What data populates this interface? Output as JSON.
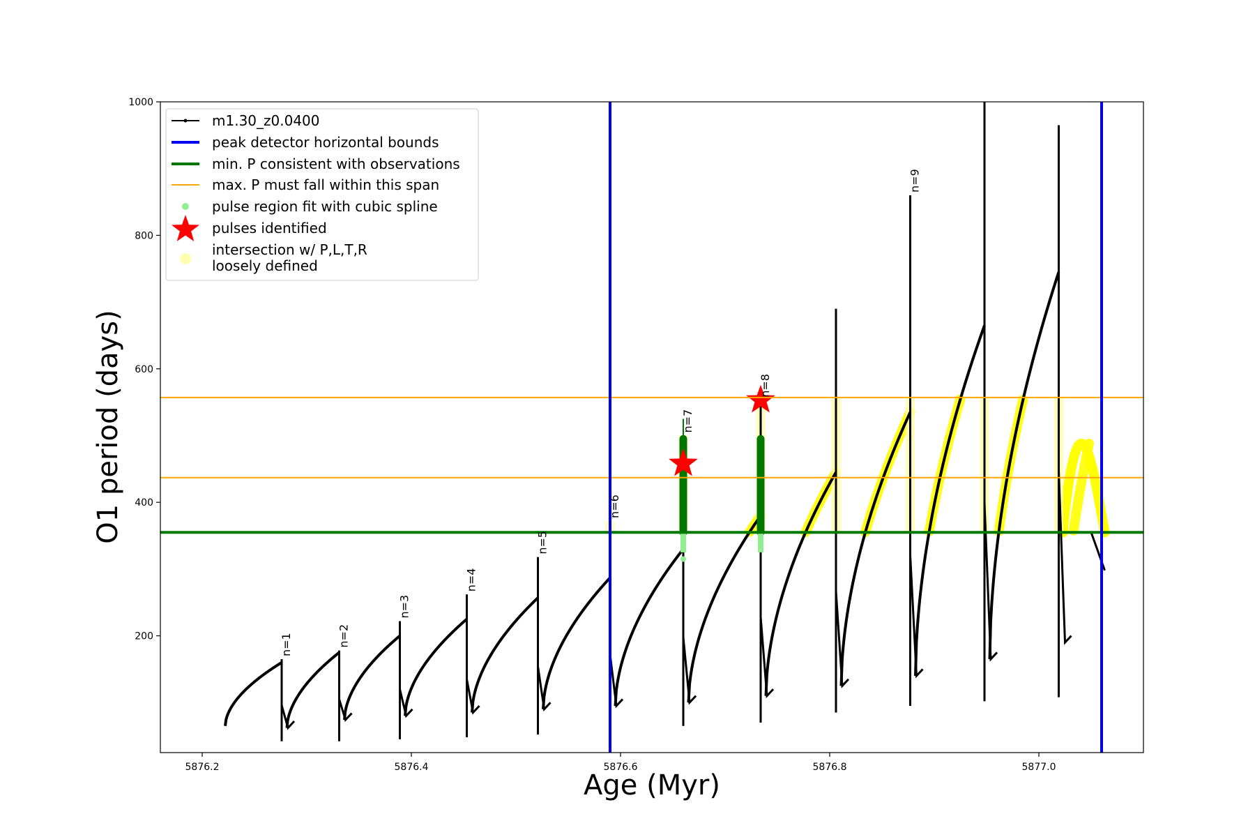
{
  "chart_data": {
    "type": "line",
    "xlabel": "Age (Myr)",
    "ylabel": "O1 period (days)",
    "xlim": [
      5876.16,
      5877.1
    ],
    "ylim": [
      25,
      1000
    ],
    "x_ticks": [
      {
        "value": 5876.2,
        "label": "5876.2"
      },
      {
        "value": 5876.4,
        "label": "5876.4"
      },
      {
        "value": 5876.6,
        "label": "5876.6"
      },
      {
        "value": 5876.8,
        "label": "5876.8"
      },
      {
        "value": 5877.0,
        "label": "5877.0"
      }
    ],
    "y_ticks": [
      {
        "value": 200,
        "label": "200"
      },
      {
        "value": 400,
        "label": "400"
      },
      {
        "value": 600,
        "label": "600"
      },
      {
        "value": 800,
        "label": "800"
      },
      {
        "value": 1000,
        "label": "1000"
      }
    ],
    "grid": false,
    "legend_position": "top-left",
    "legend": [
      {
        "label": "m1.30_z0.0400",
        "kind": "line-dot",
        "color": "#000000"
      },
      {
        "label": "peak detector horizontal bounds",
        "kind": "line",
        "color": "#0000ee"
      },
      {
        "label": "min. P consistent with observations",
        "kind": "line",
        "color": "#007800"
      },
      {
        "label": "max. P must fall within this span",
        "kind": "line",
        "color": "#ffa500"
      },
      {
        "label": "pulse region fit with cubic spline",
        "kind": "dot",
        "color": "#90ee90"
      },
      {
        "label": "pulses identified",
        "kind": "star",
        "color": "#ff0000"
      },
      {
        "label": "intersection w/ P,L,T,R\nloosely defined",
        "kind": "circle",
        "color": "#ffffb0"
      }
    ],
    "vertical_lines": [
      {
        "x": 5876.59,
        "color": "#0000ee"
      },
      {
        "x": 5877.06,
        "color": "#0000ee"
      }
    ],
    "horizontal_lines": [
      {
        "y": 355,
        "color": "#007800"
      },
      {
        "y": 437,
        "color": "#ffa500"
      },
      {
        "y": 557,
        "color": "#ffa500"
      }
    ],
    "pulses": [
      {
        "label": "n=1",
        "x": 5876.276,
        "peak": 160,
        "spike": 165,
        "min": 42,
        "next_start": 62
      },
      {
        "label": "n=2",
        "x": 5876.331,
        "peak": 175,
        "spike": 178,
        "min": 42,
        "next_start": 74
      },
      {
        "label": "n=3",
        "x": 5876.389,
        "peak": 200,
        "spike": 222,
        "min": 45,
        "next_start": 80
      },
      {
        "label": "n=4",
        "x": 5876.453,
        "peak": 225,
        "spike": 262,
        "min": 48,
        "next_start": 85
      },
      {
        "label": "n=5",
        "x": 5876.521,
        "peak": 257,
        "spike": 318,
        "min": 52,
        "next_start": 90
      },
      {
        "label": "n=6",
        "x": 5876.59,
        "peak": 287,
        "spike": 372,
        "min": 55,
        "next_start": 95
      },
      {
        "label": "n=7",
        "x": 5876.66,
        "peak": 330,
        "spike": 500,
        "min": 65,
        "next_start": 100
      },
      {
        "label": "n=8",
        "x": 5876.734,
        "peak": 380,
        "spike": 553,
        "min": 70,
        "next_start": 110
      },
      {
        "label": "",
        "x": 5876.806,
        "peak": 445,
        "spike": 690,
        "min": 85,
        "next_start": 125
      },
      {
        "label": "n=9",
        "x": 5876.877,
        "peak": 535,
        "spike": 860,
        "min": 95,
        "next_start": 140
      },
      {
        "label": "",
        "x": 5876.948,
        "peak": 665,
        "spike": 1000,
        "min": 102,
        "next_start": 165
      },
      {
        "label": "",
        "x": 5877.019,
        "peak": 745,
        "spike": 965,
        "min": 108,
        "next_start": 190
      }
    ],
    "series": [
      {
        "name": "m1.30_z0.0400",
        "color": "#000000",
        "start": {
          "x": 5876.222,
          "y": 65
        },
        "end": {
          "x": 5877.063,
          "y": 298
        }
      }
    ],
    "identified_pulses": [
      {
        "x": 5876.66,
        "y": 458
      },
      {
        "x": 5876.734,
        "y": 553
      }
    ]
  }
}
